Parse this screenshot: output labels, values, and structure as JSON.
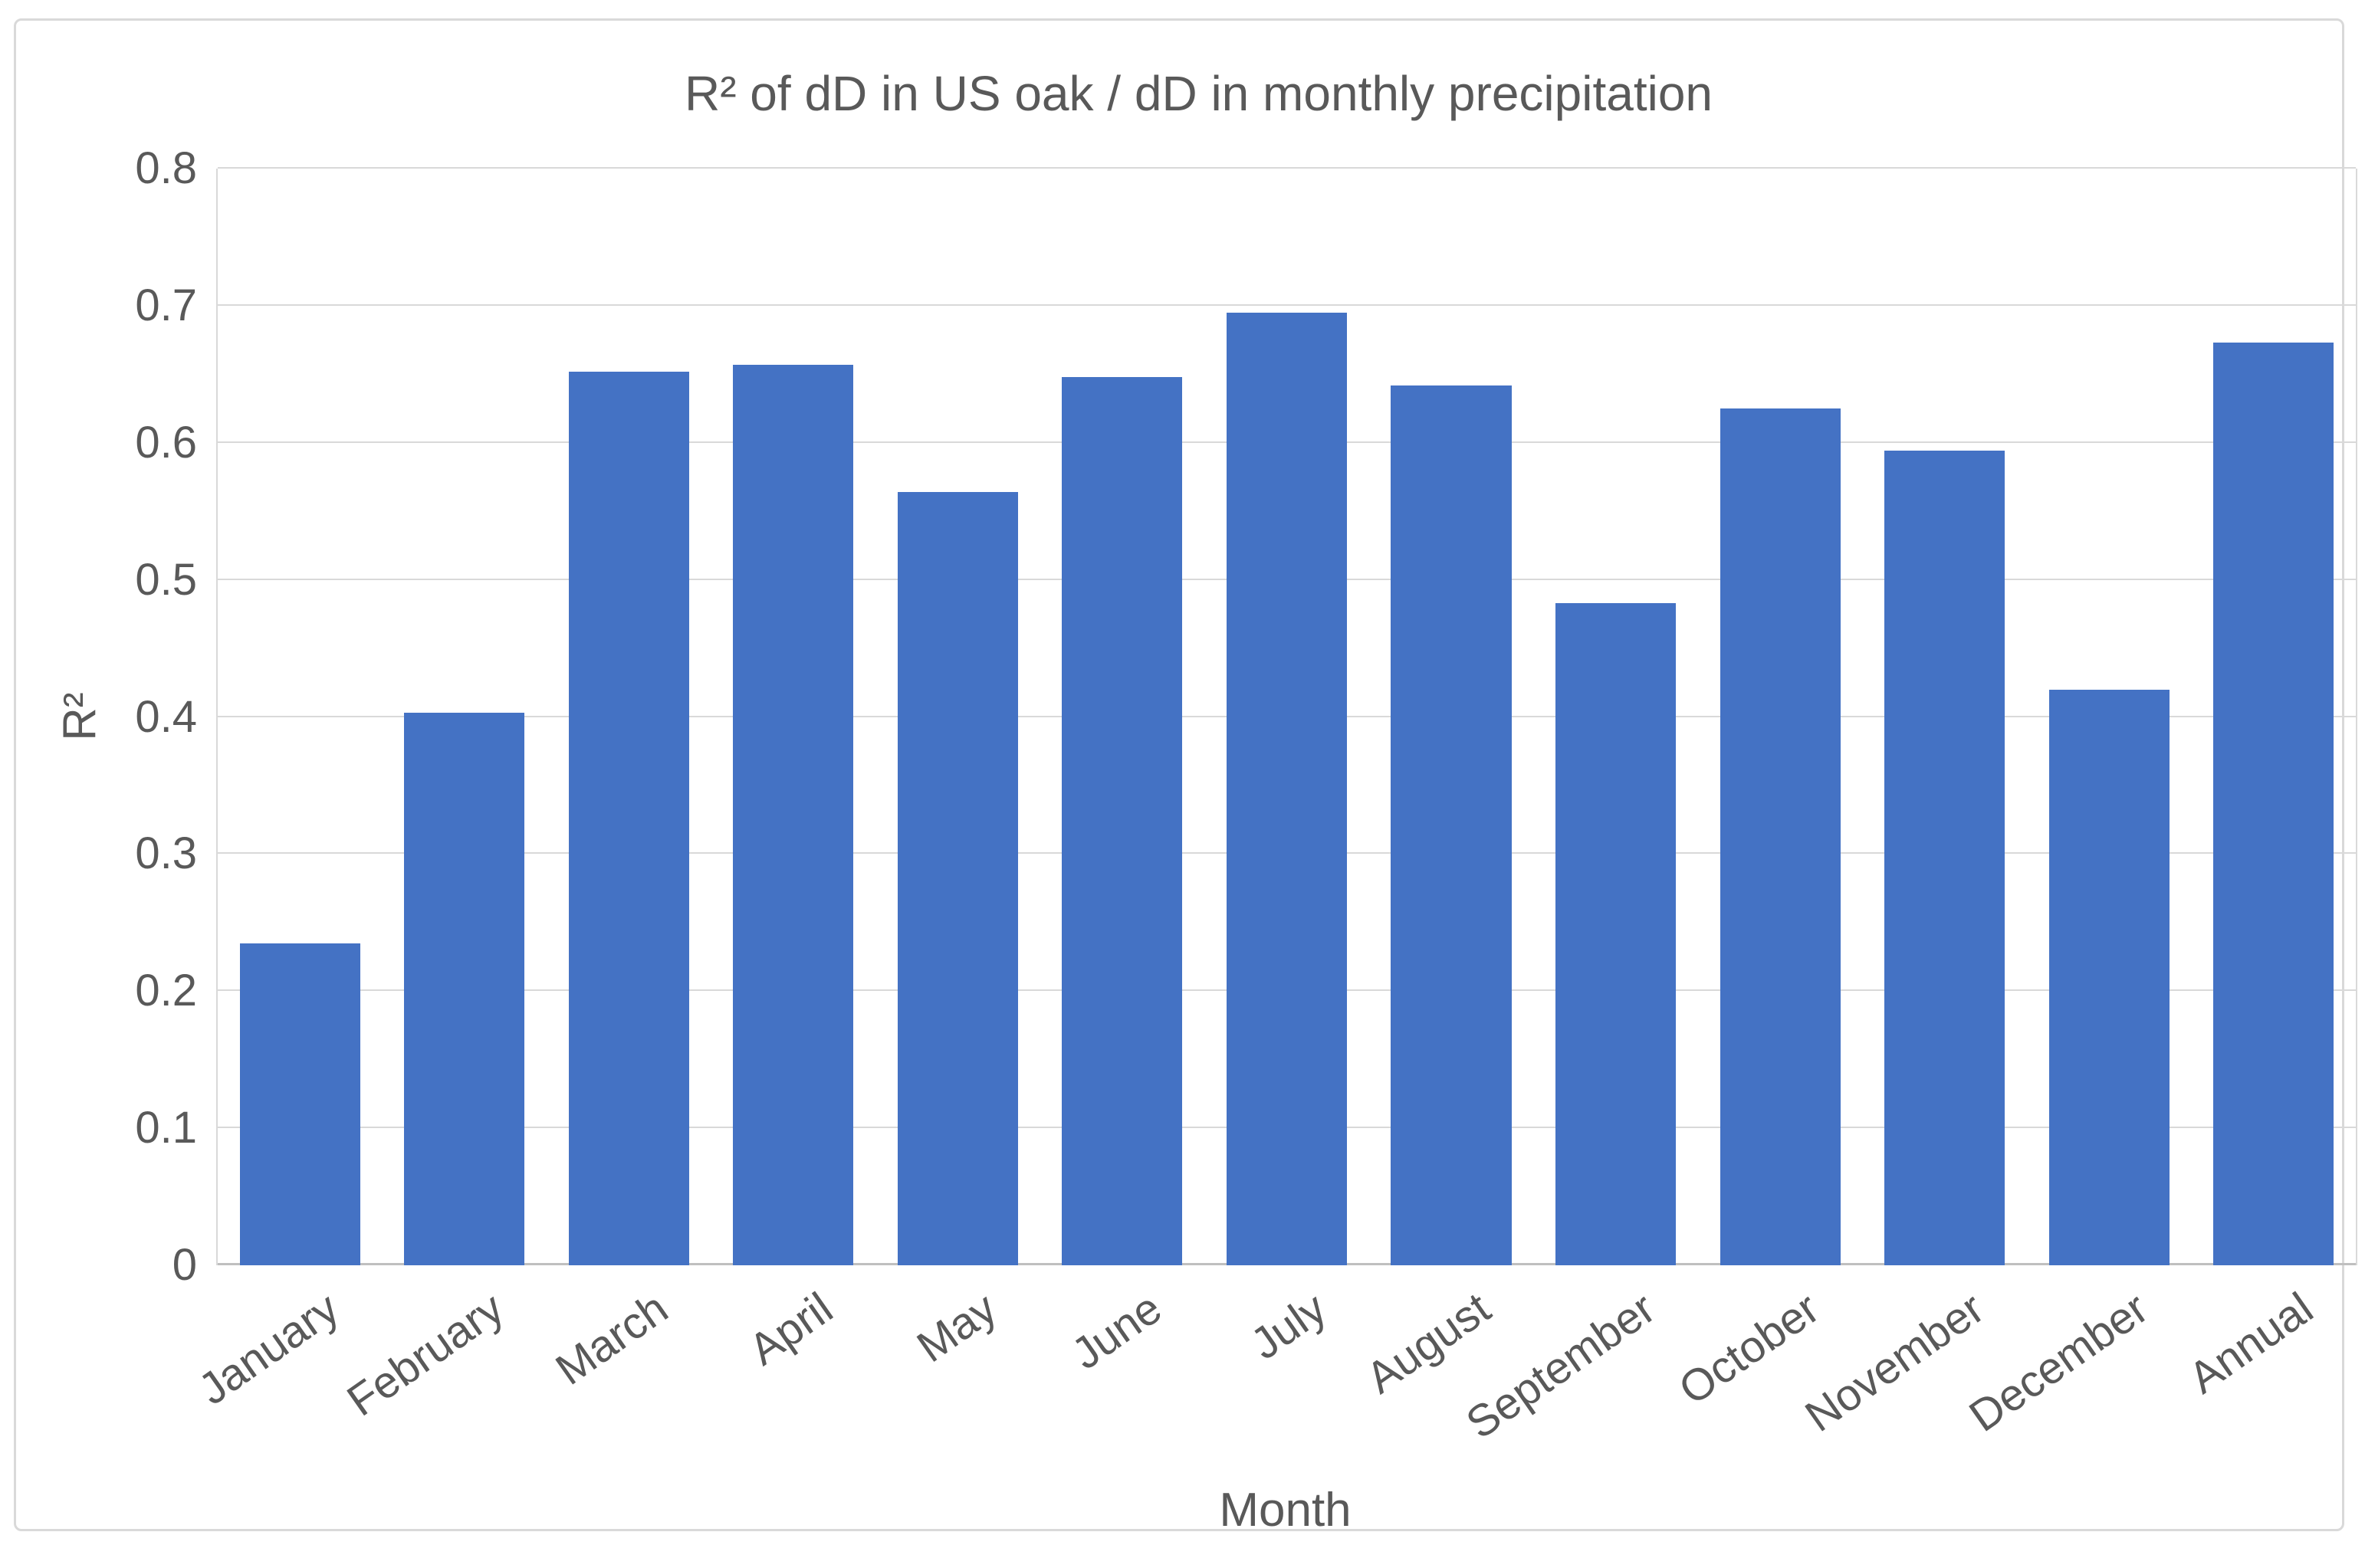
{
  "chart_data": {
    "type": "bar",
    "title": "R² of dD in US oak / dD in monthly precipitation",
    "xlabel": "Month",
    "ylabel": "R²",
    "categories": [
      "January",
      "February",
      "March",
      "April",
      "May",
      "June",
      "July",
      "August",
      "September",
      "October",
      "November",
      "December",
      "Annual"
    ],
    "values": [
      0.235,
      0.403,
      0.652,
      0.657,
      0.564,
      0.648,
      0.695,
      0.642,
      0.483,
      0.625,
      0.594,
      0.42,
      0.673
    ],
    "ylim": [
      0,
      0.8
    ],
    "yticks": [
      0,
      0.1,
      0.2,
      0.3,
      0.4,
      0.5,
      0.6,
      0.7,
      0.8
    ],
    "ytick_labels": [
      "0",
      "0.1",
      "0.2",
      "0.3",
      "0.4",
      "0.5",
      "0.6",
      "0.7",
      "0.8"
    ],
    "grid": true,
    "legend": "none",
    "colors": {
      "bar": "#4472C4",
      "text": "#595959",
      "gridline": "#D9D9D9",
      "axis_line": "#BFBFBF",
      "frame_border": "#D9D9D9",
      "background": "#FFFFFF"
    }
  }
}
